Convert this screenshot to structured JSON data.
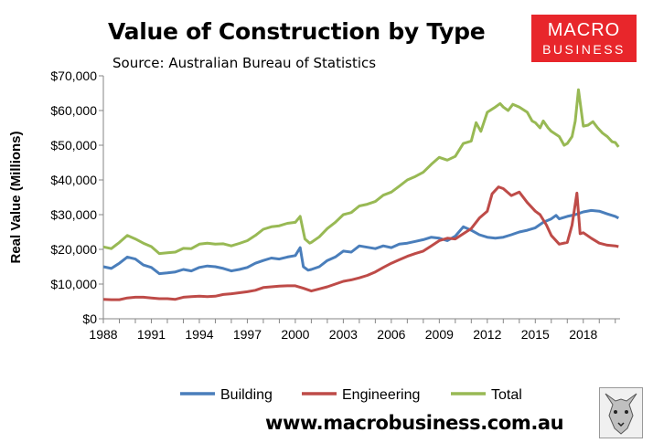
{
  "chart_data": {
    "type": "line",
    "title": "Value of Construction by Type",
    "subtitle": "Source: Australian Bureau of Statistics",
    "ylabel": "Real Value (Millions)",
    "xlabel": "",
    "xlim": [
      1988,
      2020.3
    ],
    "ylim": [
      0,
      70000
    ],
    "x_ticks": [
      1988,
      1991,
      1994,
      1997,
      2000,
      2003,
      2006,
      2009,
      2012,
      2015,
      2018
    ],
    "y_ticks": [
      0,
      10000,
      20000,
      30000,
      40000,
      50000,
      60000,
      70000
    ],
    "y_tick_labels": [
      "$0",
      "$10,000",
      "$20,000",
      "$30,000",
      "$40,000",
      "$50,000",
      "$60,000",
      "$70,000"
    ],
    "legend_position": "bottom",
    "series": [
      {
        "name": "Building",
        "color": "#4a7ebb",
        "points": [
          [
            1988.0,
            15000
          ],
          [
            1988.5,
            14500
          ],
          [
            1989.0,
            16000
          ],
          [
            1989.5,
            17800
          ],
          [
            1990.0,
            17200
          ],
          [
            1990.5,
            15500
          ],
          [
            1991.0,
            14800
          ],
          [
            1991.5,
            13000
          ],
          [
            1992.0,
            13200
          ],
          [
            1992.5,
            13500
          ],
          [
            1993.0,
            14200
          ],
          [
            1993.5,
            13800
          ],
          [
            1994.0,
            14800
          ],
          [
            1994.5,
            15200
          ],
          [
            1995.0,
            15000
          ],
          [
            1995.5,
            14500
          ],
          [
            1996.0,
            13800
          ],
          [
            1996.5,
            14200
          ],
          [
            1997.0,
            14800
          ],
          [
            1997.5,
            16000
          ],
          [
            1998.0,
            16800
          ],
          [
            1998.5,
            17500
          ],
          [
            1999.0,
            17200
          ],
          [
            1999.5,
            17800
          ],
          [
            2000.0,
            18200
          ],
          [
            2000.3,
            20500
          ],
          [
            2000.5,
            15000
          ],
          [
            2000.8,
            14000
          ],
          [
            2001.0,
            14200
          ],
          [
            2001.5,
            15000
          ],
          [
            2002.0,
            16800
          ],
          [
            2002.5,
            17800
          ],
          [
            2003.0,
            19500
          ],
          [
            2003.5,
            19200
          ],
          [
            2004.0,
            21000
          ],
          [
            2004.5,
            20600
          ],
          [
            2005.0,
            20200
          ],
          [
            2005.5,
            21000
          ],
          [
            2006.0,
            20500
          ],
          [
            2006.5,
            21500
          ],
          [
            2007.0,
            21800
          ],
          [
            2007.5,
            22300
          ],
          [
            2008.0,
            22800
          ],
          [
            2008.5,
            23500
          ],
          [
            2009.0,
            23200
          ],
          [
            2009.5,
            22500
          ],
          [
            2010.0,
            23800
          ],
          [
            2010.5,
            26500
          ],
          [
            2011.0,
            25500
          ],
          [
            2011.5,
            24200
          ],
          [
            2012.0,
            23500
          ],
          [
            2012.5,
            23200
          ],
          [
            2013.0,
            23500
          ],
          [
            2013.5,
            24200
          ],
          [
            2014.0,
            25000
          ],
          [
            2014.5,
            25500
          ],
          [
            2015.0,
            26200
          ],
          [
            2015.5,
            27800
          ],
          [
            2016.0,
            28800
          ],
          [
            2016.3,
            29800
          ],
          [
            2016.5,
            28800
          ],
          [
            2017.0,
            29500
          ],
          [
            2017.5,
            30000
          ],
          [
            2018.0,
            30800
          ],
          [
            2018.5,
            31200
          ],
          [
            2019.0,
            31000
          ],
          [
            2019.5,
            30200
          ],
          [
            2020.0,
            29500
          ],
          [
            2020.2,
            29000
          ]
        ]
      },
      {
        "name": "Engineering",
        "color": "#be4b48",
        "points": [
          [
            1988.0,
            5600
          ],
          [
            1988.5,
            5500
          ],
          [
            1989.0,
            5500
          ],
          [
            1989.5,
            6000
          ],
          [
            1990.0,
            6200
          ],
          [
            1990.5,
            6200
          ],
          [
            1991.0,
            6000
          ],
          [
            1991.5,
            5800
          ],
          [
            1992.0,
            5800
          ],
          [
            1992.5,
            5600
          ],
          [
            1993.0,
            6200
          ],
          [
            1993.5,
            6400
          ],
          [
            1994.0,
            6500
          ],
          [
            1994.5,
            6400
          ],
          [
            1995.0,
            6500
          ],
          [
            1995.5,
            7000
          ],
          [
            1996.0,
            7200
          ],
          [
            1996.5,
            7500
          ],
          [
            1997.0,
            7800
          ],
          [
            1997.5,
            8200
          ],
          [
            1998.0,
            9000
          ],
          [
            1998.5,
            9200
          ],
          [
            1999.0,
            9400
          ],
          [
            1999.5,
            9500
          ],
          [
            2000.0,
            9500
          ],
          [
            2000.5,
            8800
          ],
          [
            2001.0,
            8000
          ],
          [
            2001.5,
            8600
          ],
          [
            2002.0,
            9200
          ],
          [
            2002.5,
            10000
          ],
          [
            2003.0,
            10800
          ],
          [
            2003.5,
            11200
          ],
          [
            2004.0,
            11800
          ],
          [
            2004.5,
            12500
          ],
          [
            2005.0,
            13500
          ],
          [
            2005.5,
            14800
          ],
          [
            2006.0,
            16000
          ],
          [
            2006.5,
            17000
          ],
          [
            2007.0,
            18000
          ],
          [
            2007.5,
            18800
          ],
          [
            2008.0,
            19500
          ],
          [
            2008.5,
            21000
          ],
          [
            2009.0,
            22500
          ],
          [
            2009.5,
            23200
          ],
          [
            2010.0,
            23000
          ],
          [
            2010.5,
            24500
          ],
          [
            2011.0,
            26000
          ],
          [
            2011.5,
            29000
          ],
          [
            2012.0,
            31000
          ],
          [
            2012.3,
            36000
          ],
          [
            2012.7,
            38000
          ],
          [
            2013.0,
            37500
          ],
          [
            2013.5,
            35500
          ],
          [
            2014.0,
            36500
          ],
          [
            2014.5,
            33500
          ],
          [
            2015.0,
            31000
          ],
          [
            2015.3,
            30000
          ],
          [
            2015.7,
            27000
          ],
          [
            2016.0,
            24000
          ],
          [
            2016.5,
            21500
          ],
          [
            2017.0,
            22000
          ],
          [
            2017.3,
            27000
          ],
          [
            2017.6,
            36200
          ],
          [
            2017.8,
            24500
          ],
          [
            2018.0,
            24800
          ],
          [
            2018.5,
            23200
          ],
          [
            2019.0,
            21800
          ],
          [
            2019.5,
            21200
          ],
          [
            2020.0,
            21000
          ],
          [
            2020.2,
            20800
          ]
        ]
      },
      {
        "name": "Total",
        "color": "#98b954",
        "points": [
          [
            1988.0,
            20700
          ],
          [
            1988.5,
            20200
          ],
          [
            1989.0,
            22000
          ],
          [
            1989.5,
            24000
          ],
          [
            1990.0,
            23000
          ],
          [
            1990.5,
            21800
          ],
          [
            1991.0,
            20800
          ],
          [
            1991.5,
            18800
          ],
          [
            1992.0,
            19000
          ],
          [
            1992.5,
            19200
          ],
          [
            1993.0,
            20300
          ],
          [
            1993.5,
            20200
          ],
          [
            1994.0,
            21500
          ],
          [
            1994.5,
            21800
          ],
          [
            1995.0,
            21500
          ],
          [
            1995.5,
            21600
          ],
          [
            1996.0,
            21000
          ],
          [
            1996.5,
            21700
          ],
          [
            1997.0,
            22500
          ],
          [
            1997.5,
            24000
          ],
          [
            1998.0,
            25800
          ],
          [
            1998.5,
            26500
          ],
          [
            1999.0,
            26800
          ],
          [
            1999.5,
            27500
          ],
          [
            2000.0,
            27800
          ],
          [
            2000.3,
            29500
          ],
          [
            2000.6,
            23000
          ],
          [
            2000.9,
            21800
          ],
          [
            2001.0,
            22000
          ],
          [
            2001.5,
            23600
          ],
          [
            2002.0,
            26000
          ],
          [
            2002.5,
            27800
          ],
          [
            2003.0,
            30000
          ],
          [
            2003.5,
            30600
          ],
          [
            2004.0,
            32500
          ],
          [
            2004.5,
            33000
          ],
          [
            2005.0,
            33800
          ],
          [
            2005.5,
            35600
          ],
          [
            2006.0,
            36500
          ],
          [
            2006.5,
            38200
          ],
          [
            2007.0,
            40000
          ],
          [
            2007.5,
            41000
          ],
          [
            2008.0,
            42200
          ],
          [
            2008.5,
            44500
          ],
          [
            2009.0,
            46500
          ],
          [
            2009.5,
            45700
          ],
          [
            2010.0,
            46800
          ],
          [
            2010.5,
            50500
          ],
          [
            2011.0,
            51200
          ],
          [
            2011.3,
            56500
          ],
          [
            2011.6,
            54000
          ],
          [
            2012.0,
            59500
          ],
          [
            2012.5,
            61000
          ],
          [
            2012.8,
            62000
          ],
          [
            2013.0,
            61000
          ],
          [
            2013.3,
            60000
          ],
          [
            2013.6,
            61800
          ],
          [
            2014.0,
            61000
          ],
          [
            2014.5,
            59500
          ],
          [
            2014.8,
            57000
          ],
          [
            2015.0,
            56500
          ],
          [
            2015.3,
            55000
          ],
          [
            2015.5,
            57000
          ],
          [
            2015.8,
            55000
          ],
          [
            2016.0,
            54000
          ],
          [
            2016.5,
            52500
          ],
          [
            2016.8,
            50000
          ],
          [
            2017.0,
            50500
          ],
          [
            2017.3,
            52500
          ],
          [
            2017.5,
            57000
          ],
          [
            2017.7,
            66000
          ],
          [
            2018.0,
            55500
          ],
          [
            2018.3,
            55800
          ],
          [
            2018.6,
            56800
          ],
          [
            2018.9,
            55000
          ],
          [
            2019.2,
            53500
          ],
          [
            2019.5,
            52500
          ],
          [
            2019.8,
            51000
          ],
          [
            2020.0,
            50800
          ],
          [
            2020.2,
            49500
          ]
        ]
      }
    ]
  },
  "branding": {
    "logo_line1": "MACRO",
    "logo_line2": "BUSINESS",
    "logo_bg": "#e8262b",
    "website": "www.macrobusiness.com.au"
  }
}
